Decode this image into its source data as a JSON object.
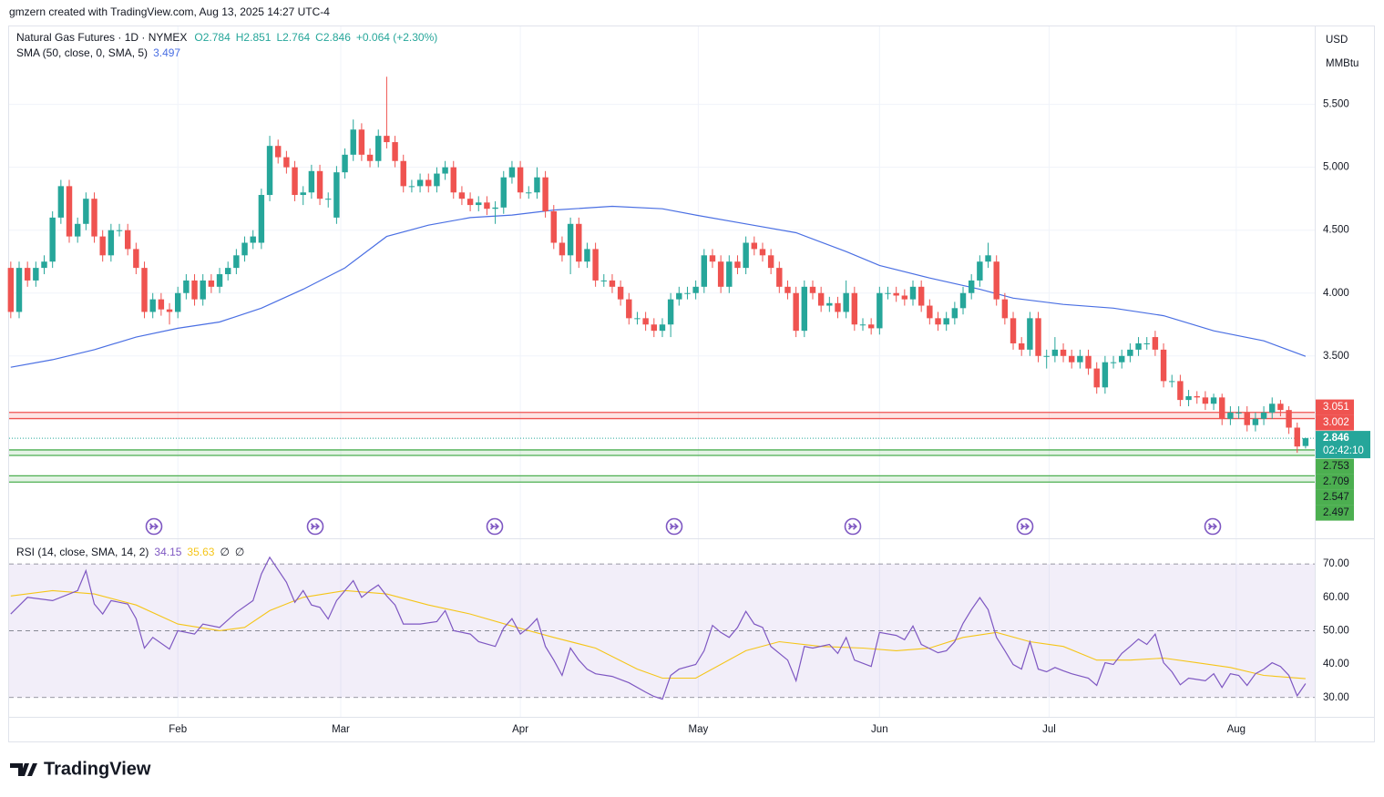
{
  "header": "gmzern created with TradingView.com, Aug 13, 2025 14:27 UTC-4",
  "footer_brand": "TradingView",
  "chart_data": {
    "type": "candlestick",
    "title": "Natural Gas Futures · 1D · NYMEX",
    "quote": [
      "O2.784",
      "H2.851",
      "L2.764",
      "C2.846",
      "+0.064 (+2.30%)"
    ],
    "currency": "USD",
    "unit": "MMBtu",
    "up_color": "#26a69a",
    "down_color": "#ef5350",
    "candles": [
      [
        4.2,
        4.25,
        3.8,
        3.85
      ],
      [
        3.85,
        4.25,
        3.8,
        4.2
      ],
      [
        4.2,
        4.25,
        4.05,
        4.1
      ],
      [
        4.1,
        4.25,
        4.05,
        4.2
      ],
      [
        4.2,
        4.3,
        4.15,
        4.25
      ],
      [
        4.25,
        4.65,
        4.2,
        4.6
      ],
      [
        4.6,
        4.9,
        4.55,
        4.85
      ],
      [
        4.85,
        4.9,
        4.4,
        4.45
      ],
      [
        4.45,
        4.6,
        4.4,
        4.55
      ],
      [
        4.55,
        4.8,
        4.5,
        4.75
      ],
      [
        4.75,
        4.8,
        4.4,
        4.45
      ],
      [
        4.45,
        4.5,
        4.25,
        4.3
      ],
      [
        4.3,
        4.55,
        4.25,
        4.5
      ],
      [
        4.5,
        4.55,
        4.45,
        4.5
      ],
      [
        4.5,
        4.55,
        4.3,
        4.35
      ],
      [
        4.35,
        4.4,
        4.15,
        4.2
      ],
      [
        4.2,
        4.25,
        3.8,
        3.85
      ],
      [
        3.85,
        4.0,
        3.8,
        3.95
      ],
      [
        3.95,
        4.0,
        3.82,
        3.87
      ],
      [
        3.87,
        3.92,
        3.75,
        3.85
      ],
      [
        3.85,
        4.05,
        3.8,
        4.0
      ],
      [
        4.0,
        4.15,
        3.95,
        4.1
      ],
      [
        4.1,
        4.15,
        3.9,
        3.95
      ],
      [
        3.95,
        4.15,
        3.9,
        4.1
      ],
      [
        4.1,
        4.15,
        4.0,
        4.05
      ],
      [
        4.05,
        4.2,
        4.0,
        4.15
      ],
      [
        4.15,
        4.25,
        4.1,
        4.2
      ],
      [
        4.2,
        4.35,
        4.15,
        4.3
      ],
      [
        4.3,
        4.45,
        4.25,
        4.4
      ],
      [
        4.4,
        4.5,
        4.35,
        4.45
      ],
      [
        4.4,
        4.83,
        4.35,
        4.78
      ],
      [
        4.78,
        5.25,
        4.73,
        5.17
      ],
      [
        5.17,
        5.22,
        5.03,
        5.08
      ],
      [
        5.08,
        5.13,
        4.95,
        5.0
      ],
      [
        5.0,
        5.05,
        4.73,
        4.78
      ],
      [
        4.78,
        4.85,
        4.7,
        4.8
      ],
      [
        4.8,
        5.02,
        4.75,
        4.97
      ],
      [
        4.97,
        5.02,
        4.7,
        4.75
      ],
      [
        4.75,
        4.8,
        4.68,
        4.75
      ],
      [
        4.6,
        5.01,
        4.55,
        4.96
      ],
      [
        4.96,
        5.15,
        4.91,
        5.1
      ],
      [
        5.1,
        5.38,
        5.05,
        5.3
      ],
      [
        5.3,
        5.35,
        5.05,
        5.1
      ],
      [
        5.1,
        5.15,
        5.0,
        5.05
      ],
      [
        5.05,
        5.3,
        5.0,
        5.25
      ],
      [
        5.25,
        5.72,
        5.15,
        5.2
      ],
      [
        5.2,
        5.25,
        5.0,
        5.05
      ],
      [
        5.05,
        5.1,
        4.8,
        4.85
      ],
      [
        4.85,
        4.9,
        4.8,
        4.85
      ],
      [
        4.85,
        4.95,
        4.8,
        4.9
      ],
      [
        4.9,
        4.95,
        4.8,
        4.85
      ],
      [
        4.85,
        5.0,
        4.8,
        4.95
      ],
      [
        4.95,
        5.05,
        4.9,
        5.0
      ],
      [
        5.0,
        5.05,
        4.75,
        4.8
      ],
      [
        4.8,
        4.85,
        4.7,
        4.75
      ],
      [
        4.75,
        4.8,
        4.65,
        4.7
      ],
      [
        4.7,
        4.77,
        4.65,
        4.72
      ],
      [
        4.72,
        4.77,
        4.62,
        4.67
      ],
      [
        4.67,
        4.73,
        4.55,
        4.68
      ],
      [
        4.68,
        4.97,
        4.63,
        4.92
      ],
      [
        4.92,
        5.05,
        4.87,
        5.0
      ],
      [
        5.0,
        5.05,
        4.75,
        4.8
      ],
      [
        4.8,
        4.85,
        4.75,
        4.8
      ],
      [
        4.8,
        5.0,
        4.75,
        4.92
      ],
      [
        4.92,
        4.97,
        4.6,
        4.65
      ],
      [
        4.65,
        4.7,
        4.35,
        4.4
      ],
      [
        4.4,
        4.45,
        4.25,
        4.3
      ],
      [
        4.3,
        4.6,
        4.15,
        4.55
      ],
      [
        4.55,
        4.6,
        4.2,
        4.25
      ],
      [
        4.25,
        4.4,
        4.2,
        4.35
      ],
      [
        4.35,
        4.4,
        4.05,
        4.1
      ],
      [
        4.1,
        4.15,
        4.05,
        4.1
      ],
      [
        4.1,
        4.15,
        4.0,
        4.05
      ],
      [
        4.05,
        4.1,
        3.9,
        3.95
      ],
      [
        3.95,
        4.0,
        3.75,
        3.8
      ],
      [
        3.8,
        3.85,
        3.75,
        3.8
      ],
      [
        3.8,
        3.85,
        3.7,
        3.75
      ],
      [
        3.75,
        3.8,
        3.65,
        3.7
      ],
      [
        3.7,
        3.8,
        3.65,
        3.75
      ],
      [
        3.75,
        4.0,
        3.65,
        3.95
      ],
      [
        3.95,
        4.05,
        3.9,
        4.0
      ],
      [
        4.0,
        4.05,
        3.95,
        4.0
      ],
      [
        4.0,
        4.1,
        3.95,
        4.05
      ],
      [
        4.05,
        4.35,
        4.0,
        4.3
      ],
      [
        4.3,
        4.35,
        4.2,
        4.25
      ],
      [
        4.25,
        4.3,
        4.0,
        4.05
      ],
      [
        4.05,
        4.3,
        4.0,
        4.25
      ],
      [
        4.25,
        4.3,
        4.15,
        4.2
      ],
      [
        4.2,
        4.45,
        4.15,
        4.4
      ],
      [
        4.4,
        4.45,
        4.3,
        4.35
      ],
      [
        4.35,
        4.4,
        4.25,
        4.3
      ],
      [
        4.3,
        4.35,
        4.15,
        4.2
      ],
      [
        4.2,
        4.25,
        4.0,
        4.05
      ],
      [
        4.05,
        4.1,
        3.95,
        4.0
      ],
      [
        4.0,
        4.05,
        3.65,
        3.7
      ],
      [
        3.7,
        4.1,
        3.65,
        4.05
      ],
      [
        4.05,
        4.1,
        3.95,
        4.0
      ],
      [
        4.0,
        4.05,
        3.85,
        3.9
      ],
      [
        3.9,
        3.97,
        3.85,
        3.92
      ],
      [
        3.92,
        3.97,
        3.8,
        3.85
      ],
      [
        3.85,
        4.1,
        3.8,
        4.0
      ],
      [
        4.0,
        4.05,
        3.7,
        3.75
      ],
      [
        3.75,
        3.8,
        3.7,
        3.75
      ],
      [
        3.75,
        3.8,
        3.67,
        3.72
      ],
      [
        3.72,
        4.05,
        3.67,
        4.0
      ],
      [
        4.0,
        4.05,
        3.95,
        4.0
      ],
      [
        4.0,
        4.05,
        3.93,
        3.98
      ],
      [
        3.98,
        4.03,
        3.9,
        3.95
      ],
      [
        3.95,
        4.1,
        3.9,
        4.05
      ],
      [
        4.05,
        4.1,
        3.85,
        3.9
      ],
      [
        3.9,
        3.95,
        3.75,
        3.8
      ],
      [
        3.8,
        3.85,
        3.7,
        3.75
      ],
      [
        3.75,
        3.85,
        3.7,
        3.8
      ],
      [
        3.8,
        3.93,
        3.75,
        3.88
      ],
      [
        3.88,
        4.05,
        3.83,
        4.0
      ],
      [
        4.0,
        4.15,
        3.95,
        4.1
      ],
      [
        4.1,
        4.3,
        4.05,
        4.25
      ],
      [
        4.25,
        4.4,
        4.2,
        4.3
      ],
      [
        4.25,
        4.3,
        3.9,
        3.95
      ],
      [
        3.95,
        4.0,
        3.75,
        3.8
      ],
      [
        3.8,
        3.85,
        3.55,
        3.6
      ],
      [
        3.6,
        3.65,
        3.5,
        3.55
      ],
      [
        3.55,
        3.85,
        3.5,
        3.8
      ],
      [
        3.8,
        3.85,
        3.45,
        3.5
      ],
      [
        3.5,
        3.55,
        3.4,
        3.5
      ],
      [
        3.5,
        3.65,
        3.45,
        3.55
      ],
      [
        3.55,
        3.6,
        3.45,
        3.5
      ],
      [
        3.5,
        3.55,
        3.4,
        3.45
      ],
      [
        3.45,
        3.55,
        3.4,
        3.5
      ],
      [
        3.5,
        3.55,
        3.35,
        3.4
      ],
      [
        3.4,
        3.45,
        3.2,
        3.25
      ],
      [
        3.25,
        3.5,
        3.2,
        3.45
      ],
      [
        3.45,
        3.5,
        3.4,
        3.45
      ],
      [
        3.45,
        3.55,
        3.4,
        3.5
      ],
      [
        3.5,
        3.6,
        3.45,
        3.55
      ],
      [
        3.55,
        3.65,
        3.5,
        3.6
      ],
      [
        3.6,
        3.65,
        3.55,
        3.6
      ],
      [
        3.65,
        3.7,
        3.5,
        3.55
      ],
      [
        3.55,
        3.6,
        3.25,
        3.3
      ],
      [
        3.3,
        3.35,
        3.25,
        3.3
      ],
      [
        3.3,
        3.35,
        3.1,
        3.15
      ],
      [
        3.15,
        3.23,
        3.1,
        3.18
      ],
      [
        3.18,
        3.22,
        3.12,
        3.17
      ],
      [
        3.17,
        3.22,
        3.07,
        3.12
      ],
      [
        3.12,
        3.2,
        3.07,
        3.17
      ],
      [
        3.17,
        3.2,
        2.95,
        3.0
      ],
      [
        3.0,
        3.1,
        2.95,
        3.05
      ],
      [
        3.05,
        3.1,
        3.0,
        3.05
      ],
      [
        3.05,
        3.1,
        2.9,
        2.95
      ],
      [
        2.95,
        3.05,
        2.9,
        3.0
      ],
      [
        3.0,
        3.1,
        2.95,
        3.05
      ],
      [
        3.05,
        3.17,
        3.0,
        3.12
      ],
      [
        3.12,
        3.15,
        3.02,
        3.07
      ],
      [
        3.07,
        3.1,
        2.88,
        2.93
      ],
      [
        2.93,
        2.97,
        2.73,
        2.78
      ],
      [
        2.784,
        2.851,
        2.764,
        2.846
      ]
    ],
    "xlim": [
      -0.2,
      156.1
    ],
    "xticks": [
      {
        "value": 20,
        "label": "Feb"
      },
      {
        "value": 39.5,
        "label": "Mar"
      },
      {
        "value": 61,
        "label": "Apr"
      },
      {
        "value": 82.3,
        "label": "May"
      },
      {
        "value": 104,
        "label": "Jun"
      },
      {
        "value": 124.3,
        "label": "Jul"
      },
      {
        "value": 146.7,
        "label": "Aug"
      }
    ],
    "ylim": [
      2.05,
      6.12
    ],
    "yticks": [
      {
        "value": 3.5,
        "label": "3.500"
      },
      {
        "value": 4,
        "label": "4.000"
      },
      {
        "value": 4.5,
        "label": "4.500"
      },
      {
        "value": 5,
        "label": "5.000"
      },
      {
        "value": 5.5,
        "label": "5.500"
      }
    ],
    "grid": true,
    "sma": {
      "name": "SMA (50, close, 0, SMA, 5)",
      "last": 3.497,
      "color": "#4a6fe3",
      "x": [
        0,
        5,
        10,
        15,
        20,
        25,
        30,
        35,
        40,
        45,
        50,
        55,
        60,
        65,
        72,
        78,
        82,
        88,
        94,
        100,
        104,
        110,
        116,
        120,
        126,
        132,
        138,
        144,
        150,
        155
      ],
      "values": [
        3.41,
        3.47,
        3.55,
        3.65,
        3.72,
        3.77,
        3.88,
        4.03,
        4.2,
        4.45,
        4.54,
        4.6,
        4.62,
        4.66,
        4.69,
        4.67,
        4.62,
        4.55,
        4.48,
        4.33,
        4.22,
        4.12,
        4.03,
        3.96,
        3.91,
        3.88,
        3.82,
        3.7,
        3.62,
        3.497
      ]
    },
    "zones": [
      {
        "top": 3.051,
        "bottom": 3.002,
        "color": "#ef5350"
      },
      {
        "top": 2.753,
        "bottom": 2.709,
        "color": "#4caf50"
      },
      {
        "top": 2.547,
        "bottom": 2.497,
        "color": "#4caf50"
      }
    ],
    "last_price": {
      "value": 2.846,
      "countdown": "02:42:10"
    },
    "rsi": {
      "name": "RSI (14, close, SMA, 14, 2)",
      "last": 34.15,
      "sma_last": 35.63,
      "extras": [
        "∅",
        "∅"
      ],
      "color": "#7e57c2",
      "sma_color": "#f5c518",
      "band": [
        30,
        70
      ],
      "ylim": [
        24.2,
        77.4
      ],
      "yticks": [
        {
          "value": 30,
          "label": "30.00"
        },
        {
          "value": 40,
          "label": "40.00"
        },
        {
          "value": 50,
          "label": "50.00"
        },
        {
          "value": 60,
          "label": "60.00"
        },
        {
          "value": 70,
          "label": "70.00"
        }
      ],
      "x": [
        0,
        2,
        5,
        8,
        9,
        10,
        11,
        12,
        14,
        15,
        16,
        17,
        19,
        20,
        22,
        23,
        25,
        27,
        29,
        30,
        31,
        33,
        34,
        35,
        36,
        37,
        38,
        39,
        41,
        42,
        43,
        44,
        45,
        46,
        47,
        49,
        51,
        52,
        53,
        55,
        56,
        58,
        59,
        60,
        61,
        62,
        63,
        64,
        65,
        66,
        67,
        68,
        69,
        70,
        72,
        74,
        76,
        77,
        78,
        79,
        80,
        82,
        83,
        84,
        85,
        86,
        87,
        88,
        89,
        90,
        91,
        93,
        94,
        95,
        96,
        98,
        99,
        100,
        101,
        103,
        104,
        106,
        107,
        108,
        109,
        111,
        112,
        113,
        114,
        115,
        116,
        117,
        118,
        119,
        120,
        121,
        122,
        123,
        124,
        125,
        126,
        127,
        129,
        130,
        131,
        132,
        133,
        134,
        135,
        136,
        137,
        138,
        139,
        140,
        141,
        143,
        144,
        145,
        146,
        147,
        148,
        149,
        150,
        151,
        152,
        153,
        154,
        155
      ],
      "values": [
        55,
        60,
        59,
        62,
        68,
        58,
        55,
        59,
        58,
        53.6,
        44.8,
        48,
        44.5,
        50,
        49,
        52,
        51,
        55.5,
        59,
        67,
        72,
        64.5,
        58.5,
        62,
        57.7,
        57,
        53.5,
        59,
        65,
        60,
        62,
        63.7,
        60.4,
        57.7,
        52,
        52,
        52.7,
        56,
        50,
        49,
        46.7,
        45.3,
        50.8,
        53.6,
        49,
        51,
        53.6,
        45.3,
        41.2,
        36.6,
        44.8,
        41.2,
        38.5,
        37.1,
        36.3,
        34.4,
        31.6,
        30.3,
        29.5,
        36.6,
        38.5,
        39.9,
        44,
        51.6,
        49.5,
        48,
        51,
        55.8,
        52,
        51,
        45.3,
        41.2,
        35,
        45.3,
        44.8,
        45.9,
        43.2,
        48,
        41.2,
        39.3,
        49.5,
        48.6,
        47.3,
        51.4,
        45.9,
        43.4,
        44,
        46.7,
        52.2,
        56.3,
        59.9,
        56.3,
        48,
        44,
        39.9,
        38.5,
        46.7,
        38.5,
        37.7,
        39,
        38,
        37.1,
        35.8,
        33.6,
        40.4,
        39.9,
        43.2,
        45.3,
        47.5,
        45.9,
        49,
        40.4,
        37.7,
        33.8,
        35.8,
        35,
        37.1,
        33,
        37.1,
        36.6,
        33.6,
        37.1,
        38.5,
        40.4,
        39.3,
        36.6,
        30.5,
        34.15
      ],
      "sma_x": [
        0,
        5,
        10,
        15,
        20,
        25,
        28,
        31,
        35,
        40,
        45,
        50,
        55,
        60,
        65,
        70,
        75,
        78,
        82,
        88,
        92,
        97,
        102,
        106,
        110,
        114,
        118,
        122,
        126,
        130,
        134,
        138,
        142,
        146,
        150,
        155
      ],
      "sma_values": [
        60.4,
        62,
        61,
        57.7,
        52,
        50,
        51,
        56,
        60,
        62,
        61,
        57.7,
        55,
        51.4,
        48,
        44.8,
        38.5,
        35.8,
        35.8,
        44,
        46.7,
        45.3,
        44.8,
        44,
        44.8,
        48,
        49.5,
        46.7,
        45.3,
        41.2,
        41.2,
        41.8,
        40.4,
        39,
        36.6,
        35.63
      ]
    }
  }
}
